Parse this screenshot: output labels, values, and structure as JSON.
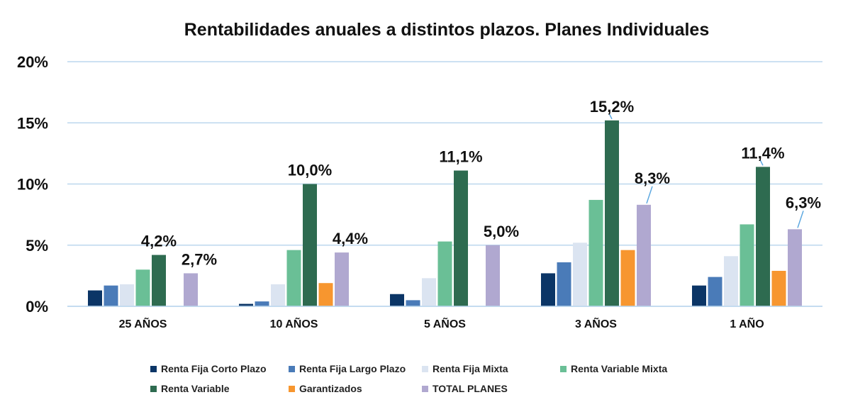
{
  "chart_data": {
    "type": "bar",
    "title": "Rentabilidades anuales a distintos plazos. Planes Individuales",
    "xlabel": "",
    "ylabel": "",
    "ylim": [
      0,
      20
    ],
    "yticks": [
      "0%",
      "5%",
      "10%",
      "15%",
      "20%"
    ],
    "ytick_values": [
      0,
      5,
      10,
      15,
      20
    ],
    "grid": true,
    "legend_position": "bottom",
    "categories": [
      "25 AÑOS",
      "10 AÑOS",
      "5 AÑOS",
      "3 AÑOS",
      "1 AÑO"
    ],
    "series": [
      {
        "name": "Renta Fija Corto Plazo",
        "color": "#0b3566",
        "values": [
          1.3,
          0.2,
          1.0,
          2.7,
          1.7
        ],
        "labels": [
          null,
          null,
          null,
          null,
          null
        ]
      },
      {
        "name": "Renta Fija Largo Plazo",
        "color": "#4a7bb8",
        "values": [
          1.7,
          0.4,
          0.5,
          3.6,
          2.4
        ],
        "labels": [
          null,
          null,
          null,
          null,
          null
        ]
      },
      {
        "name": "Renta Fija Mixta",
        "color": "#dbe4f1",
        "values": [
          1.8,
          1.8,
          2.3,
          5.2,
          4.1
        ],
        "labels": [
          null,
          null,
          null,
          null,
          null
        ]
      },
      {
        "name": "Renta Variable Mixta",
        "color": "#6abf96",
        "values": [
          3.0,
          4.6,
          5.3,
          8.7,
          6.7
        ],
        "labels": [
          null,
          null,
          null,
          null,
          null
        ]
      },
      {
        "name": "Renta Variable",
        "color": "#2e6b50",
        "values": [
          4.2,
          10.0,
          11.1,
          15.2,
          11.4
        ],
        "labels": [
          "4,2%",
          "10,0%",
          "11,1%",
          "15,2%",
          "11,4%"
        ]
      },
      {
        "name": "Garantizados",
        "color": "#f7962f",
        "values": [
          null,
          1.9,
          null,
          4.6,
          2.9
        ],
        "labels": [
          null,
          null,
          null,
          null,
          null
        ]
      },
      {
        "name": "TOTAL PLANES",
        "color": "#b0a8d0",
        "values": [
          2.7,
          4.4,
          5.0,
          8.3,
          6.3
        ],
        "labels": [
          "2,7%",
          "4,4%",
          "5,0%",
          "8,3%",
          "6,3%"
        ]
      }
    ]
  }
}
